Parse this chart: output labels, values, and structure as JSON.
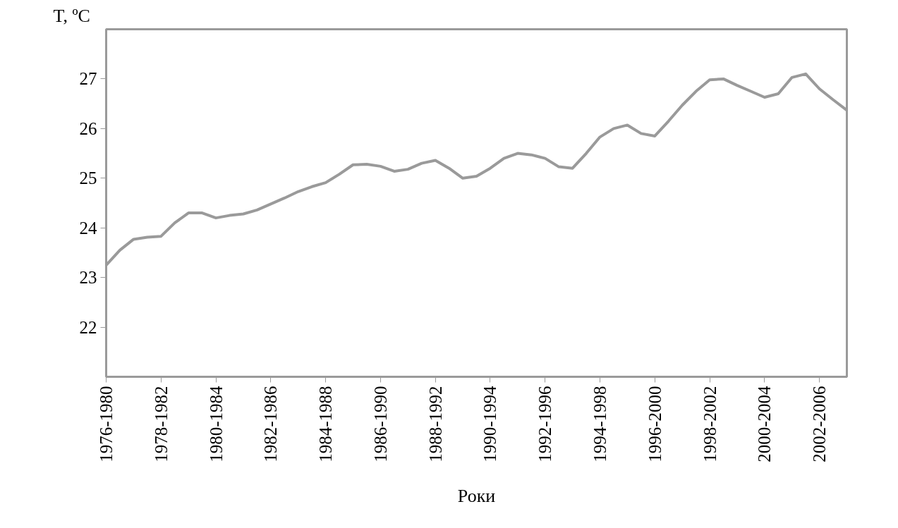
{
  "chart_data": {
    "type": "line",
    "xlabel": "Роки",
    "ylabel": "T, ºC",
    "categories": [
      "1976-1980",
      null,
      null,
      null,
      "1978-1982",
      null,
      null,
      null,
      "1980-1984",
      null,
      null,
      null,
      "1982-1986",
      null,
      null,
      null,
      "1984-1988",
      null,
      null,
      null,
      "1986-1990",
      null,
      null,
      null,
      "1988-1992",
      null,
      null,
      null,
      "1990-1994",
      null,
      null,
      null,
      "1992-1996",
      null,
      null,
      null,
      "1994-1998",
      null,
      null,
      null,
      "1996-2000",
      null,
      null,
      null,
      "1998-2002",
      null,
      null,
      null,
      "2000-2004",
      null,
      null,
      null,
      "2002-2006",
      null,
      null
    ],
    "series": [
      {
        "color": "#9a9a9a",
        "values": [
          23.25,
          23.55,
          23.77,
          23.81,
          23.83,
          24.1,
          24.3,
          24.3,
          24.2,
          24.25,
          24.28,
          24.36,
          24.48,
          24.6,
          24.73,
          24.83,
          24.91,
          25.08,
          25.27,
          25.28,
          25.24,
          25.14,
          25.18,
          25.3,
          25.36,
          25.2,
          25.0,
          25.04,
          25.2,
          25.4,
          25.5,
          25.47,
          25.4,
          25.23,
          25.2,
          25.5,
          25.83,
          26.0,
          26.07,
          25.9,
          25.85,
          26.15,
          26.47,
          26.75,
          26.98,
          27.0,
          26.87,
          26.75,
          26.63,
          26.7,
          27.03,
          27.1,
          26.8,
          26.58,
          26.37
        ]
      }
    ],
    "ylim": [
      21,
      28
    ],
    "yticks": [
      22,
      23,
      24,
      25,
      26,
      27
    ],
    "grid": false,
    "marker": "none",
    "line_style": "solid"
  }
}
